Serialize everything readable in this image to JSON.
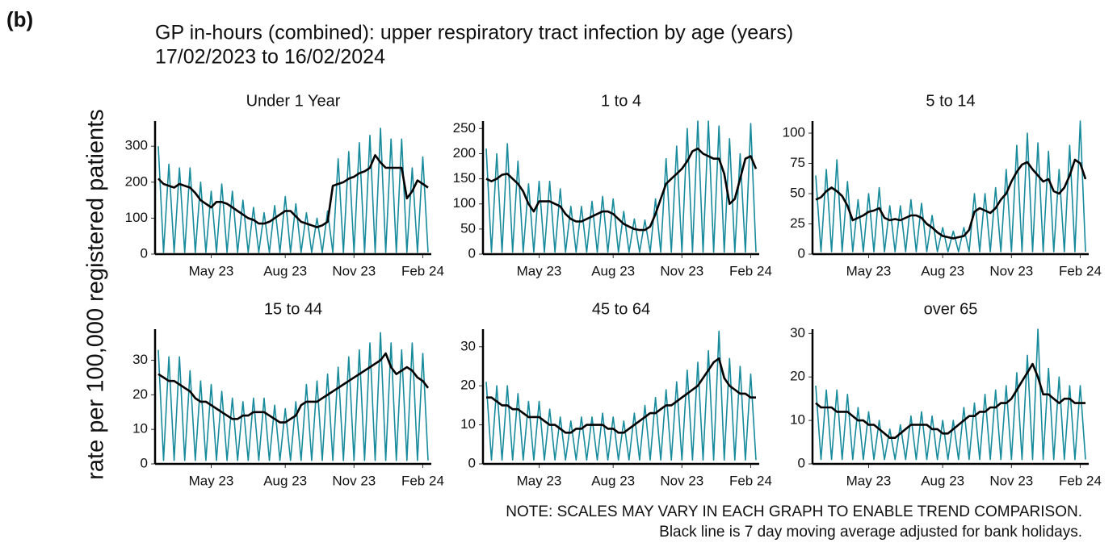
{
  "figure": {
    "label": "(b)",
    "title": "GP in-hours (combined): upper respiratory tract infection by age (years)",
    "subtitle": "17/02/2023 to 16/02/2024",
    "y_label": "rate per 100,000 registered patients",
    "notes": [
      "NOTE: SCALES MAY VARY IN EACH GRAPH TO ENABLE TREND COMPARISON.",
      "Black line is 7 day moving average adjusted for bank holidays."
    ]
  },
  "chart_data": [
    {
      "type": "line",
      "title": "Under 1 Year",
      "ylim": [
        0,
        370
      ],
      "yticks": [
        0,
        100,
        200,
        300
      ],
      "categories": [
        null,
        null,
        null,
        null,
        null,
        null,
        null,
        null,
        null,
        null,
        "May 23",
        null,
        null,
        null,
        null,
        null,
        null,
        null,
        null,
        null,
        null,
        null,
        null,
        null,
        "Aug 23",
        null,
        null,
        null,
        null,
        null,
        null,
        null,
        null,
        null,
        null,
        null,
        null,
        "Nov 23",
        null,
        null,
        null,
        null,
        null,
        null,
        null,
        null,
        null,
        null,
        null,
        null,
        "Feb 24",
        null
      ],
      "series": [
        {
          "color": "#178a9c",
          "values": [
            300,
            5,
            250,
            5,
            240,
            5,
            240,
            5,
            200,
            5,
            175,
            5,
            195,
            5,
            175,
            5,
            150,
            5,
            130,
            5,
            115,
            5,
            135,
            5,
            160,
            5,
            140,
            5,
            115,
            5,
            100,
            5,
            120,
            5,
            265,
            5,
            285,
            5,
            310,
            5,
            330,
            5,
            350,
            5,
            320,
            5,
            320,
            5,
            240,
            5,
            270,
            5
          ]
        },
        {
          "color": "#000000",
          "values": [
            210,
            195,
            190,
            185,
            195,
            190,
            185,
            170,
            150,
            140,
            130,
            145,
            145,
            140,
            130,
            120,
            110,
            100,
            95,
            85,
            85,
            90,
            100,
            110,
            120,
            120,
            105,
            90,
            85,
            80,
            75,
            80,
            90,
            190,
            195,
            200,
            210,
            215,
            225,
            230,
            240,
            275,
            255,
            240,
            240,
            240,
            240,
            155,
            175,
            205,
            195,
            185
          ]
        }
      ]
    },
    {
      "type": "line",
      "title": "1 to 4",
      "ylim": [
        0,
        265
      ],
      "yticks": [
        0,
        50,
        100,
        150,
        200,
        250
      ],
      "categories": [
        null,
        null,
        null,
        null,
        null,
        null,
        null,
        null,
        null,
        null,
        "May 23",
        null,
        null,
        null,
        null,
        null,
        null,
        null,
        null,
        null,
        null,
        null,
        null,
        null,
        "Aug 23",
        null,
        null,
        null,
        null,
        null,
        null,
        null,
        null,
        null,
        null,
        null,
        null,
        "Nov 23",
        null,
        null,
        null,
        null,
        null,
        null,
        null,
        null,
        null,
        null,
        null,
        null,
        "Feb 24",
        null
      ],
      "series": [
        {
          "color": "#178a9c",
          "values": [
            210,
            4,
            200,
            4,
            220,
            4,
            185,
            4,
            140,
            4,
            145,
            4,
            145,
            4,
            130,
            4,
            95,
            4,
            95,
            4,
            105,
            4,
            115,
            4,
            110,
            4,
            85,
            4,
            70,
            4,
            68,
            4,
            110,
            4,
            190,
            4,
            215,
            4,
            250,
            4,
            265,
            4,
            265,
            4,
            255,
            4,
            230,
            4,
            200,
            4,
            260,
            4
          ]
        },
        {
          "color": "#000000",
          "values": [
            150,
            145,
            150,
            158,
            160,
            150,
            140,
            125,
            100,
            85,
            105,
            105,
            105,
            100,
            95,
            80,
            70,
            65,
            65,
            70,
            75,
            80,
            85,
            85,
            80,
            70,
            60,
            55,
            50,
            48,
            48,
            55,
            80,
            110,
            140,
            150,
            160,
            170,
            185,
            205,
            210,
            200,
            195,
            190,
            190,
            160,
            100,
            110,
            150,
            190,
            195,
            170
          ]
        }
      ]
    },
    {
      "type": "line",
      "title": "5 to 14",
      "ylim": [
        0,
        110
      ],
      "yticks": [
        0,
        25,
        50,
        75,
        100
      ],
      "categories": [
        null,
        null,
        null,
        null,
        null,
        null,
        null,
        null,
        null,
        null,
        "May 23",
        null,
        null,
        null,
        null,
        null,
        null,
        null,
        null,
        null,
        null,
        null,
        null,
        null,
        "Aug 23",
        null,
        null,
        null,
        null,
        null,
        null,
        null,
        null,
        null,
        null,
        null,
        null,
        "Nov 23",
        null,
        null,
        null,
        null,
        null,
        null,
        null,
        null,
        null,
        null,
        null,
        null,
        "Feb 24",
        null
      ],
      "series": [
        {
          "color": "#178a9c",
          "values": [
            65,
            2,
            70,
            2,
            78,
            2,
            60,
            2,
            45,
            2,
            50,
            2,
            55,
            2,
            40,
            2,
            40,
            2,
            45,
            2,
            42,
            2,
            32,
            2,
            22,
            2,
            19,
            2,
            22,
            2,
            50,
            2,
            50,
            2,
            55,
            2,
            70,
            2,
            90,
            2,
            100,
            2,
            92,
            2,
            85,
            2,
            70,
            2,
            90,
            2,
            110,
            2
          ]
        },
        {
          "color": "#000000",
          "values": [
            45,
            47,
            52,
            55,
            52,
            48,
            40,
            28,
            30,
            32,
            35,
            36,
            38,
            30,
            28,
            29,
            28,
            30,
            32,
            32,
            30,
            25,
            22,
            18,
            15,
            14,
            13,
            14,
            15,
            20,
            35,
            38,
            36,
            34,
            38,
            45,
            50,
            60,
            68,
            74,
            76,
            70,
            65,
            60,
            62,
            52,
            50,
            55,
            65,
            78,
            75,
            62
          ]
        }
      ]
    },
    {
      "type": "line",
      "title": "15 to 44",
      "ylim": [
        0,
        39
      ],
      "yticks": [
        0,
        10,
        20,
        30
      ],
      "categories": [
        null,
        null,
        null,
        null,
        null,
        null,
        null,
        null,
        null,
        null,
        "May 23",
        null,
        null,
        null,
        null,
        null,
        null,
        null,
        null,
        null,
        null,
        null,
        null,
        null,
        "Aug 23",
        null,
        null,
        null,
        null,
        null,
        null,
        null,
        null,
        null,
        null,
        null,
        null,
        "Nov 23",
        null,
        null,
        null,
        null,
        null,
        null,
        null,
        null,
        null,
        null,
        null,
        null,
        "Feb 24",
        null
      ],
      "series": [
        {
          "color": "#178a9c",
          "values": [
            33,
            1,
            31,
            1,
            31,
            1,
            27,
            1,
            24,
            1,
            23,
            1,
            21,
            1,
            19,
            1,
            18,
            1,
            19,
            1,
            19,
            1,
            17,
            1,
            16,
            1,
            18,
            1,
            23,
            1,
            24,
            1,
            26,
            1,
            28,
            1,
            31,
            1,
            33,
            1,
            35,
            1,
            38,
            1,
            35,
            1,
            33,
            1,
            35,
            1,
            32,
            1
          ]
        },
        {
          "color": "#000000",
          "values": [
            26,
            25,
            24,
            24,
            23,
            22,
            21,
            19,
            18,
            18,
            17,
            16,
            15,
            14,
            13,
            13,
            14,
            14,
            15,
            15,
            15,
            14,
            13,
            12,
            12,
            13,
            14,
            17,
            18,
            18,
            18,
            19,
            20,
            21,
            22,
            23,
            24,
            25,
            26,
            27,
            28,
            29,
            30,
            32,
            28,
            26,
            27,
            28,
            27,
            25,
            24,
            22
          ]
        }
      ]
    },
    {
      "type": "line",
      "title": "45 to 64",
      "ylim": [
        0,
        34.5
      ],
      "yticks": [
        0,
        10,
        20,
        30
      ],
      "categories": [
        null,
        null,
        null,
        null,
        null,
        null,
        null,
        null,
        null,
        null,
        "May 23",
        null,
        null,
        null,
        null,
        null,
        null,
        null,
        null,
        null,
        null,
        null,
        null,
        null,
        "Aug 23",
        null,
        null,
        null,
        null,
        null,
        null,
        null,
        null,
        null,
        null,
        null,
        null,
        "Nov 23",
        null,
        null,
        null,
        null,
        null,
        null,
        null,
        null,
        null,
        null,
        null,
        null,
        "Feb 24",
        null
      ],
      "series": [
        {
          "color": "#178a9c",
          "values": [
            21,
            1,
            20,
            1,
            20,
            1,
            18,
            1,
            16,
            1,
            16,
            1,
            14,
            1,
            12,
            1,
            11,
            1,
            12,
            1,
            12,
            1,
            13,
            1,
            12,
            1,
            11,
            1,
            13,
            1,
            15,
            1,
            17,
            1,
            19,
            1,
            21,
            1,
            24,
            1,
            26,
            1,
            29,
            1,
            34,
            1,
            27,
            1,
            25,
            1,
            23,
            1
          ]
        },
        {
          "color": "#000000",
          "values": [
            17,
            17,
            16,
            15,
            15,
            14,
            14,
            13,
            12,
            12,
            12,
            11,
            10,
            10,
            9,
            8,
            8,
            9,
            9,
            10,
            10,
            10,
            10,
            9,
            9,
            8,
            8,
            9,
            10,
            11,
            12,
            13,
            13,
            14,
            15,
            15,
            16,
            17,
            18,
            19,
            20,
            22,
            24,
            26,
            27,
            22,
            20,
            19,
            18,
            18,
            17,
            17
          ]
        }
      ]
    },
    {
      "type": "line",
      "title": "over 65",
      "ylim": [
        0,
        31
      ],
      "yticks": [
        0,
        10,
        20,
        30
      ],
      "categories": [
        null,
        null,
        null,
        null,
        null,
        null,
        null,
        null,
        null,
        null,
        "May 23",
        null,
        null,
        null,
        null,
        null,
        null,
        null,
        null,
        null,
        null,
        null,
        null,
        null,
        "Aug 23",
        null,
        null,
        null,
        null,
        null,
        null,
        null,
        null,
        null,
        null,
        null,
        null,
        "Nov 23",
        null,
        null,
        null,
        null,
        null,
        null,
        null,
        null,
        null,
        null,
        null,
        null,
        "Feb 24",
        null
      ],
      "series": [
        {
          "color": "#178a9c",
          "values": [
            18,
            1,
            17,
            1,
            17,
            1,
            16,
            1,
            13,
            1,
            12,
            1,
            10,
            1,
            8,
            1,
            9,
            1,
            11,
            1,
            12,
            1,
            11,
            1,
            10,
            1,
            10,
            1,
            13,
            1,
            14,
            1,
            16,
            1,
            17,
            1,
            18,
            1,
            21,
            1,
            25,
            1,
            31,
            1,
            22,
            1,
            20,
            1,
            18,
            1,
            18,
            1
          ]
        },
        {
          "color": "#000000",
          "values": [
            14,
            13,
            13,
            13,
            12,
            12,
            12,
            11,
            10,
            10,
            9,
            9,
            8,
            7,
            6,
            6,
            7,
            8,
            9,
            9,
            9,
            9,
            8,
            8,
            7,
            7,
            8,
            9,
            10,
            11,
            11,
            12,
            12,
            13,
            13,
            14,
            14,
            15,
            17,
            19,
            21,
            23,
            20,
            16,
            16,
            15,
            14,
            15,
            15,
            14,
            14,
            14
          ]
        }
      ]
    }
  ]
}
